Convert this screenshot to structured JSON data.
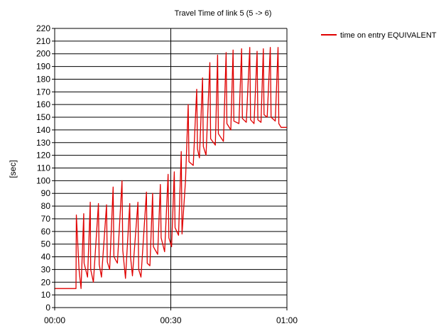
{
  "chart_data": {
    "type": "line",
    "title": "Travel Time of link 5 (5 -> 6)",
    "ylabel": "[sec]",
    "xlabel": "",
    "xlim": [
      0,
      60
    ],
    "ylim": [
      0,
      220
    ],
    "y_ticks": [
      0,
      10,
      20,
      30,
      40,
      50,
      60,
      70,
      80,
      90,
      100,
      110,
      120,
      130,
      140,
      150,
      160,
      170,
      180,
      190,
      200,
      210,
      220
    ],
    "x_ticks": [
      0,
      30,
      60
    ],
    "x_tick_labels": [
      "00:00",
      "00:30",
      "01:00"
    ],
    "grid": true,
    "legend_position": "top-right",
    "series": [
      {
        "name": "time on entry EQUIVALENT",
        "color": "#e00000",
        "x": [
          0,
          5.5,
          5.6,
          6.3,
          6.8,
          7.5,
          7.6,
          8.5,
          9.2,
          9.3,
          10,
          11.3,
          11.5,
          12.1,
          13.4,
          13.6,
          14.2,
          15.1,
          15.3,
          16.2,
          17.4,
          17.6,
          18.3,
          19.4,
          19.6,
          20.1,
          21.5,
          21.7,
          22.3,
          23.7,
          23.9,
          24.6,
          25.3,
          25.5,
          26.6,
          27.3,
          27.5,
          28.4,
          29.3,
          29.5,
          30.2,
          30.9,
          31.1,
          32.0,
          32.7,
          32.9,
          33.8,
          34.5,
          34.7,
          35.8,
          36.7,
          36.9,
          37.4,
          38.2,
          38.4,
          39.1,
          40.1,
          40.3,
          41.5,
          42.1,
          42.3,
          43.6,
          44.3,
          44.5,
          45.5,
          46.1,
          46.3,
          47.6,
          48.3,
          48.5,
          49.5,
          50.4,
          50.6,
          51.5,
          52.3,
          52.5,
          53.3,
          53.9,
          54.1,
          54.9,
          55.7,
          55.9,
          57.0,
          57.7,
          57.9,
          58.5,
          60
        ],
        "y": [
          15,
          15,
          73,
          30,
          15,
          74,
          35,
          24,
          83,
          30,
          20,
          82,
          34,
          24,
          81,
          36,
          30,
          95,
          40,
          35,
          100,
          45,
          23,
          82,
          40,
          25,
          83,
          30,
          24,
          91,
          35,
          33,
          90,
          48,
          42,
          97,
          55,
          44,
          105,
          55,
          48,
          107,
          63,
          57,
          123,
          58,
          100,
          160,
          115,
          112,
          172,
          125,
          118,
          181,
          127,
          120,
          193,
          133,
          128,
          199,
          137,
          131,
          201,
          145,
          140,
          203,
          147,
          145,
          204,
          149,
          146,
          205,
          148,
          145,
          202,
          148,
          146,
          204,
          152,
          150,
          205,
          150,
          147,
          205,
          145,
          142,
          142
        ]
      }
    ]
  }
}
